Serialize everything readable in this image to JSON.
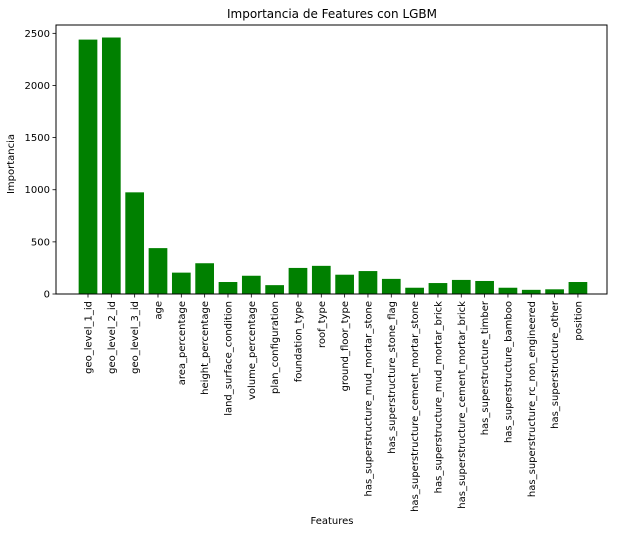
{
  "colors": {
    "bar": "#008000",
    "axis": "#000000",
    "background": "#ffffff"
  },
  "chart_data": {
    "type": "bar",
    "title": "Importancia de Features con LGBM",
    "xlabel": "Features",
    "ylabel": "Importancia",
    "ylim": [
      0,
      2580
    ],
    "yticks": [
      0,
      500,
      1000,
      1500,
      2000,
      2500
    ],
    "grid": false,
    "legend": "none",
    "categories": [
      "geo_level_1_id",
      "geo_level_2_id",
      "geo_level_3_id",
      "age",
      "area_percentage",
      "height_percentage",
      "land_surface_condition",
      "volume_percentage",
      "plan_configuration",
      "foundation_type",
      "roof_type",
      "ground_floor_type",
      "has_superstructure_mud_mortar_stone",
      "has_superstructure_stone_flag",
      "has_superstructure_cement_mortar_stone",
      "has_superstructure_mud_mortar_brick",
      "has_superstructure_cement_mortar_brick",
      "has_superstructure_timber",
      "has_superstructure_bamboo",
      "has_superstructure_rc_non_engineered",
      "has_superstructure_other",
      "position"
    ],
    "values": [
      2440,
      2460,
      975,
      440,
      205,
      295,
      115,
      175,
      85,
      250,
      270,
      185,
      220,
      145,
      60,
      105,
      135,
      125,
      60,
      40,
      45,
      115
    ]
  }
}
